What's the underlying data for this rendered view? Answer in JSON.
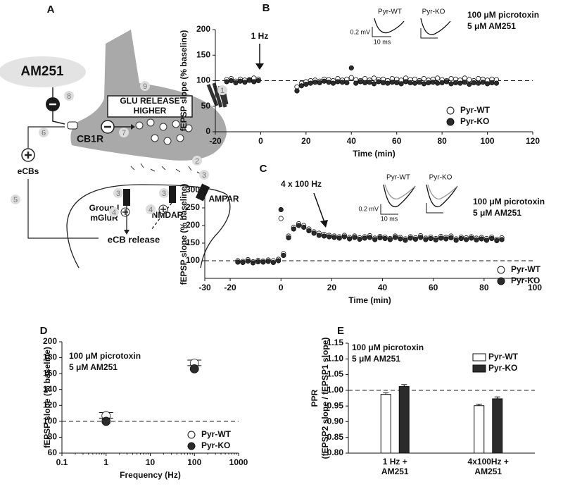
{
  "diagram": {
    "panel": "A",
    "drug": "AM251",
    "n8": "8",
    "n9": "9",
    "release_line1": "GLU RELEASE",
    "release_line2": "HIGHER",
    "n1": "1",
    "receptor": "CB1R",
    "n7": "7",
    "n6": "6",
    "ecbs": "eCBs",
    "n2": "2",
    "n3a": "3",
    "n3b": "3",
    "n3c": "3",
    "mglur_line1": "Group I",
    "mglur_line2": "mGluR",
    "nmdar": "NMDAR",
    "ampar": "AMPAR",
    "n4a": "4",
    "n4b": "4",
    "n5": "5",
    "ecb_release": "eCB release"
  },
  "chart_data": [
    {
      "type": "scatter",
      "panel": "B",
      "xlabel": "Time (min)",
      "ylabel": "fEPSP slope (% baseline)",
      "xlim": [
        -20,
        120
      ],
      "xticks": [
        -20,
        0,
        20,
        40,
        60,
        80,
        100,
        120
      ],
      "ylim": [
        0,
        200
      ],
      "yticks": [
        0,
        50,
        100,
        150,
        200
      ],
      "reference_line": 100,
      "legend": "lower right",
      "annotation": "1 Hz",
      "condition1": "100 μM picrotoxin",
      "condition2": "5 μM AM251",
      "inset_labels": [
        "Pyr-WT",
        "Pyr-KO"
      ],
      "scale_y": "0.2 mV",
      "scale_x": "10 ms",
      "x": [
        -15,
        -13,
        -11,
        -9,
        -7,
        -5,
        -3,
        -1,
        16,
        18,
        20,
        22,
        24,
        26,
        28,
        30,
        32,
        34,
        36,
        38,
        40,
        42,
        44,
        46,
        48,
        50,
        52,
        54,
        56,
        58,
        60,
        62,
        64,
        66,
        68,
        70,
        72,
        74,
        76,
        78,
        80,
        82,
        84,
        86,
        88,
        90,
        92,
        94,
        96,
        98,
        100,
        102,
        104
      ],
      "series": [
        {
          "name": "Pyr-WT",
          "color": "#ffffff",
          "values": [
            102,
            104,
            99,
            103,
            101,
            100,
            105,
            103,
            88,
            95,
            98,
            100,
            101,
            99,
            103,
            102,
            100,
            104,
            101,
            103,
            106,
            102,
            100,
            104,
            101,
            105,
            102,
            103,
            100,
            104,
            103,
            101,
            105,
            102,
            103,
            100,
            104,
            101,
            103,
            105,
            102,
            100,
            104,
            103,
            101,
            105,
            102,
            100,
            104,
            103,
            101,
            103,
            102
          ]
        },
        {
          "name": "Pyr-KO",
          "color": "#2b2b2b",
          "values": [
            98,
            100,
            96,
            99,
            97,
            102,
            98,
            100,
            80,
            90,
            93,
            95,
            97,
            96,
            99,
            97,
            95,
            98,
            97,
            96,
            125,
            95,
            98,
            96,
            97,
            94,
            98,
            96,
            95,
            97,
            96,
            94,
            98,
            96,
            95,
            97,
            94,
            96,
            97,
            95,
            96,
            98,
            94,
            96,
            95,
            97,
            93,
            96,
            95,
            97,
            94,
            96,
            95
          ]
        }
      ]
    },
    {
      "type": "scatter",
      "panel": "C",
      "xlabel": "Time (min)",
      "ylabel": "fEPSP slope (% baseline)",
      "xlim": [
        -30,
        100
      ],
      "xticks": [
        -30,
        -20,
        0,
        20,
        40,
        60,
        80,
        100
      ],
      "ylim": [
        50,
        300
      ],
      "yticks": [
        100,
        150,
        200,
        250,
        300
      ],
      "reference_line": 100,
      "legend": "lower right",
      "annotation": "4 x 100 Hz",
      "condition1": "100 μM picrotoxin",
      "condition2": "5 μM AM251",
      "inset_labels": [
        "Pyr-WT",
        "Pyr-KO"
      ],
      "scale_y": "0.2 mV",
      "scale_x": "10 ms",
      "x": [
        -17,
        -15,
        -13,
        -11,
        -9,
        -7,
        -5,
        -3,
        -1,
        0,
        1,
        3,
        5,
        7,
        9,
        11,
        13,
        15,
        17,
        19,
        21,
        23,
        25,
        27,
        29,
        31,
        33,
        35,
        37,
        39,
        41,
        43,
        45,
        47,
        49,
        51,
        53,
        55,
        57,
        59,
        61,
        63,
        65,
        67,
        69,
        71,
        73,
        75,
        77,
        79,
        81,
        83,
        85,
        87
      ],
      "series": [
        {
          "name": "Pyr-WT",
          "color": "#ffffff",
          "values": [
            100,
            98,
            103,
            97,
            101,
            99,
            102,
            100,
            104,
            220,
            120,
            170,
            195,
            205,
            200,
            190,
            182,
            178,
            175,
            172,
            170,
            168,
            172,
            166,
            170,
            165,
            168,
            171,
            164,
            169,
            167,
            163,
            170,
            166,
            162,
            168,
            165,
            171,
            164,
            167,
            163,
            169,
            166,
            170,
            162,
            167,
            165,
            168,
            164,
            166,
            163,
            167,
            161,
            165
          ]
        },
        {
          "name": "Pyr-KO",
          "color": "#2b2b2b",
          "values": [
            96,
            95,
            99,
            94,
            97,
            96,
            98,
            95,
            100,
            245,
            115,
            165,
            190,
            200,
            195,
            185,
            178,
            172,
            170,
            168,
            166,
            164,
            168,
            162,
            166,
            161,
            164,
            166,
            160,
            165,
            163,
            160,
            166,
            162,
            158,
            164,
            161,
            166,
            160,
            163,
            159,
            164,
            162,
            165,
            158,
            163,
            160,
            164,
            159,
            162,
            158,
            163,
            157,
            160
          ]
        }
      ]
    },
    {
      "type": "scatter",
      "panel": "D",
      "xlabel": "Frequency (Hz)",
      "ylabel": "fEPSP slope (% baseline)",
      "xlog": true,
      "xlim": [
        0.1,
        1000
      ],
      "xticks": [
        0.1,
        1,
        10,
        100,
        1000
      ],
      "ylim": [
        60,
        200
      ],
      "yticks": [
        60,
        80,
        100,
        120,
        140,
        160,
        180,
        200
      ],
      "reference_line": 100,
      "legend": "lower right",
      "condition1": "100 μM picrotoxin",
      "condition2": "5 μM AM251",
      "x": [
        1,
        100
      ],
      "series": [
        {
          "name": "Pyr-WT",
          "color": "#ffffff",
          "values": [
            107,
            173
          ],
          "errors": [
            4,
            4
          ]
        },
        {
          "name": "Pyr-KO",
          "color": "#2b2b2b",
          "values": [
            100,
            166
          ],
          "errors": [
            4,
            4
          ]
        }
      ]
    },
    {
      "type": "bar",
      "panel": "E",
      "ylabel": "PPR",
      "ylabel_sub": "(fEPSP2 slope / fEPSP1 slope)",
      "ylim": [
        0.8,
        1.15
      ],
      "yticks": [
        {
          "value": 0.8,
          "label": "0.80"
        },
        0.85,
        {
          "value": 0.9,
          "label": "0.90"
        },
        0.95,
        {
          "value": 1.0,
          "label": "1.00"
        },
        1.05,
        {
          "value": 1.1,
          "label": "1.10"
        },
        1.15
      ],
      "reference_line": 1.0,
      "legend": "upper right",
      "condition1": "100 μM picrotoxin",
      "condition2": "5 μM AM251",
      "categories": [
        "1 Hz +\nAM251",
        "4x100Hz +\nAM251"
      ],
      "series": [
        {
          "name": "Pyr-WT",
          "color": "#ffffff",
          "values": [
            0.987,
            0.951
          ],
          "errors": [
            0.005,
            0.005
          ]
        },
        {
          "name": "Pyr-KO",
          "color": "#2b2b2b",
          "values": [
            1.012,
            0.973
          ],
          "errors": [
            0.006,
            0.006
          ]
        }
      ]
    }
  ]
}
